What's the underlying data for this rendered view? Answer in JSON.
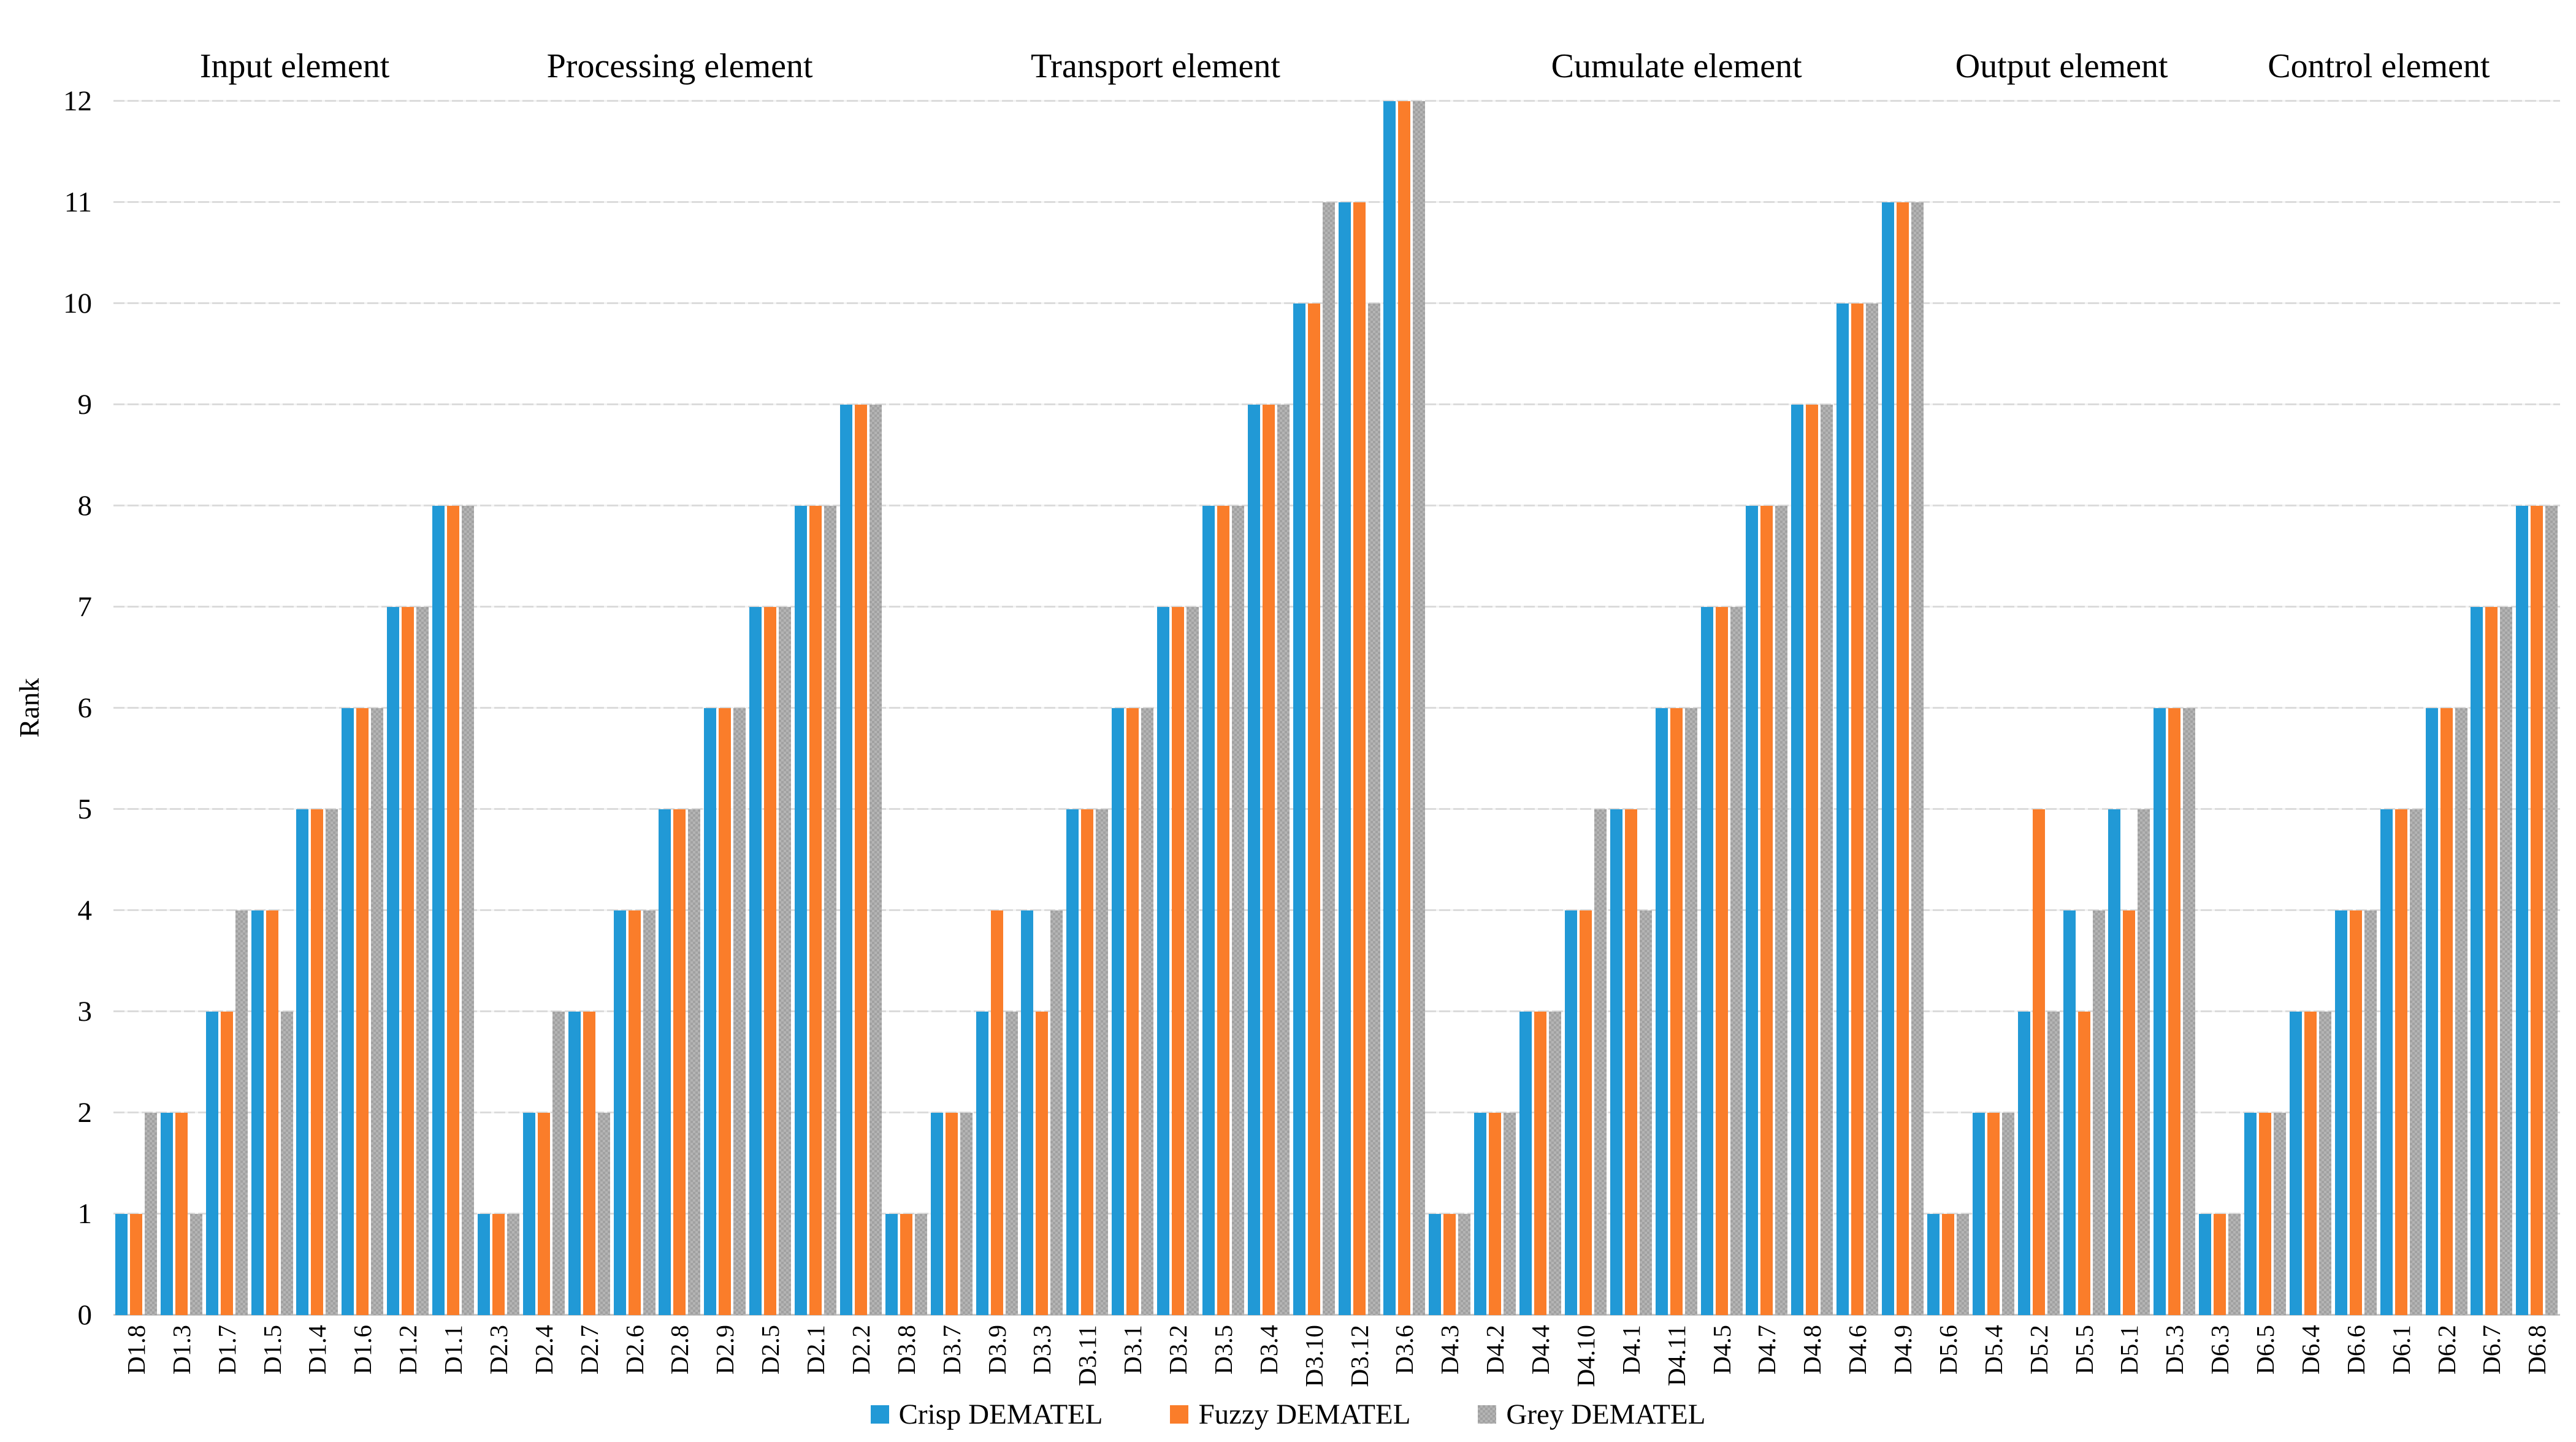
{
  "chart_data": {
    "type": "bar",
    "title": "",
    "ylabel": "Rank",
    "ylim": [
      0,
      12
    ],
    "yticks": [
      0,
      1,
      2,
      3,
      4,
      5,
      6,
      7,
      8,
      9,
      10,
      11,
      12
    ],
    "grid": true,
    "legend_position": "bottom",
    "series": [
      {
        "name": "Crisp DEMATEL",
        "color": "#2199d6"
      },
      {
        "name": "Fuzzy DEMATEL",
        "color": "#fa7d2a"
      },
      {
        "name": "Grey DEMATEL",
        "color": "#a9a9a9"
      }
    ],
    "sections": [
      {
        "label": "Input element",
        "items": [
          {
            "label": "D1.8",
            "values": [
              1,
              1,
              2
            ]
          },
          {
            "label": "D1.3",
            "values": [
              2,
              2,
              1
            ]
          },
          {
            "label": "D1.7",
            "values": [
              3,
              3,
              4
            ]
          },
          {
            "label": "D1.5",
            "values": [
              4,
              4,
              3
            ]
          },
          {
            "label": "D1.4",
            "values": [
              5,
              5,
              5
            ]
          },
          {
            "label": "D1.6",
            "values": [
              6,
              6,
              6
            ]
          },
          {
            "label": "D1.2",
            "values": [
              7,
              7,
              7
            ]
          },
          {
            "label": "D1.1",
            "values": [
              8,
              8,
              8
            ]
          }
        ]
      },
      {
        "label": "Processing element",
        "items": [
          {
            "label": "D2.3",
            "values": [
              1,
              1,
              1
            ]
          },
          {
            "label": "D2.4",
            "values": [
              2,
              2,
              3
            ]
          },
          {
            "label": "D2.7",
            "values": [
              3,
              3,
              2
            ]
          },
          {
            "label": "D2.6",
            "values": [
              4,
              4,
              4
            ]
          },
          {
            "label": "D2.8",
            "values": [
              5,
              5,
              5
            ]
          },
          {
            "label": "D2.9",
            "values": [
              6,
              6,
              6
            ]
          },
          {
            "label": "D2.5",
            "values": [
              7,
              7,
              7
            ]
          },
          {
            "label": "D2.1",
            "values": [
              8,
              8,
              8
            ]
          },
          {
            "label": "D2.2",
            "values": [
              9,
              9,
              9
            ]
          }
        ]
      },
      {
        "label": "Transport element",
        "items": [
          {
            "label": "D3.8",
            "values": [
              1,
              1,
              1
            ]
          },
          {
            "label": "D3.7",
            "values": [
              2,
              2,
              2
            ]
          },
          {
            "label": "D3.9",
            "values": [
              3,
              4,
              3
            ]
          },
          {
            "label": "D3.3",
            "values": [
              4,
              3,
              4
            ]
          },
          {
            "label": "D3.11",
            "values": [
              5,
              5,
              5
            ]
          },
          {
            "label": "D3.1",
            "values": [
              6,
              6,
              6
            ]
          },
          {
            "label": "D3.2",
            "values": [
              7,
              7,
              7
            ]
          },
          {
            "label": "D3.5",
            "values": [
              8,
              8,
              8
            ]
          },
          {
            "label": "D3.4",
            "values": [
              9,
              9,
              9
            ]
          },
          {
            "label": "D3.10",
            "values": [
              10,
              10,
              11
            ]
          },
          {
            "label": "D3.12",
            "values": [
              11,
              11,
              10
            ]
          },
          {
            "label": "D3.6",
            "values": [
              12,
              12,
              12
            ]
          }
        ]
      },
      {
        "label": "Cumulate element",
        "items": [
          {
            "label": "D4.3",
            "values": [
              1,
              1,
              1
            ]
          },
          {
            "label": "D4.2",
            "values": [
              2,
              2,
              2
            ]
          },
          {
            "label": "D4.4",
            "values": [
              3,
              3,
              3
            ]
          },
          {
            "label": "D4.10",
            "values": [
              4,
              4,
              5
            ]
          },
          {
            "label": "D4.1",
            "values": [
              5,
              5,
              4
            ]
          },
          {
            "label": "D4.11",
            "values": [
              6,
              6,
              6
            ]
          },
          {
            "label": "D4.5",
            "values": [
              7,
              7,
              7
            ]
          },
          {
            "label": "D4.7",
            "values": [
              8,
              8,
              8
            ]
          },
          {
            "label": "D4.8",
            "values": [
              9,
              9,
              9
            ]
          },
          {
            "label": "D4.6",
            "values": [
              10,
              10,
              10
            ]
          },
          {
            "label": "D4.9",
            "values": [
              11,
              11,
              11
            ]
          }
        ]
      },
      {
        "label": "Output element",
        "items": [
          {
            "label": "D5.6",
            "values": [
              1,
              1,
              1
            ]
          },
          {
            "label": "D5.4",
            "values": [
              2,
              2,
              2
            ]
          },
          {
            "label": "D5.2",
            "values": [
              3,
              5,
              3
            ]
          },
          {
            "label": "D5.5",
            "values": [
              4,
              3,
              4
            ]
          },
          {
            "label": "D5.1",
            "values": [
              5,
              4,
              5
            ]
          },
          {
            "label": "D5.3",
            "values": [
              6,
              6,
              6
            ]
          }
        ]
      },
      {
        "label": "Control element",
        "items": [
          {
            "label": "D6.3",
            "values": [
              1,
              1,
              1
            ]
          },
          {
            "label": "D6.5",
            "values": [
              2,
              2,
              2
            ]
          },
          {
            "label": "D6.4",
            "values": [
              3,
              3,
              3
            ]
          },
          {
            "label": "D6.6",
            "values": [
              4,
              4,
              4
            ]
          },
          {
            "label": "D6.1",
            "values": [
              5,
              5,
              5
            ]
          },
          {
            "label": "D6.2",
            "values": [
              6,
              6,
              6
            ]
          },
          {
            "label": "D6.7",
            "values": [
              7,
              7,
              7
            ]
          },
          {
            "label": "D6.8",
            "values": [
              8,
              8,
              8
            ]
          }
        ]
      }
    ]
  }
}
